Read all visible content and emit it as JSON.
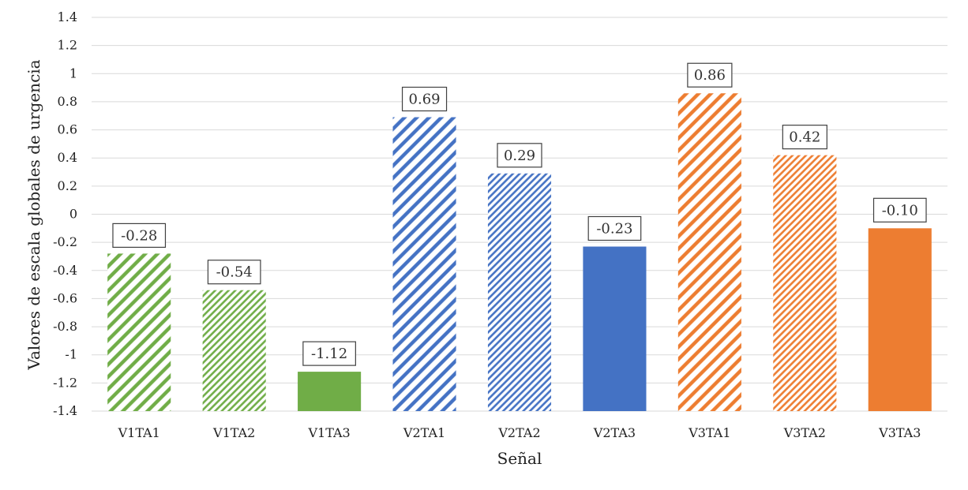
{
  "chart_data": {
    "type": "bar",
    "categories": [
      "V1TA1",
      "V1TA2",
      "V1TA3",
      "V2TA1",
      "V2TA2",
      "V2TA3",
      "V3TA1",
      "V3TA2",
      "V3TA3"
    ],
    "values": [
      -0.28,
      -0.54,
      -1.12,
      0.69,
      0.29,
      -0.23,
      0.86,
      0.42,
      -0.1
    ],
    "data_labels": [
      "-0.28",
      "-0.54",
      "-1.12",
      "0.69",
      "0.29",
      "-0.23",
      "0.86",
      "0.42",
      "-0.10"
    ],
    "bar_colors": [
      "#70ad47",
      "#70ad47",
      "#70ad47",
      "#4472c4",
      "#4472c4",
      "#4472c4",
      "#ed7d31",
      "#ed7d31",
      "#ed7d31"
    ],
    "bar_patterns": [
      "wide-diagonal",
      "fine-diagonal",
      "solid",
      "wide-diagonal",
      "fine-diagonal",
      "solid",
      "wide-diagonal",
      "fine-diagonal",
      "solid"
    ],
    "title": "",
    "xlabel": "Señal",
    "ylabel": "Valores de escala globales de urgencia",
    "ylim": [
      -1.4,
      1.4
    ],
    "yticks": [
      "1.4",
      "1.2",
      "1",
      "0.8",
      "0.6",
      "0.4",
      "0.2",
      "0",
      "-0.2",
      "-0.4",
      "-0.6",
      "-0.8",
      "-1",
      "-1.2",
      "-1.4"
    ],
    "grid": true,
    "legend": "none"
  }
}
